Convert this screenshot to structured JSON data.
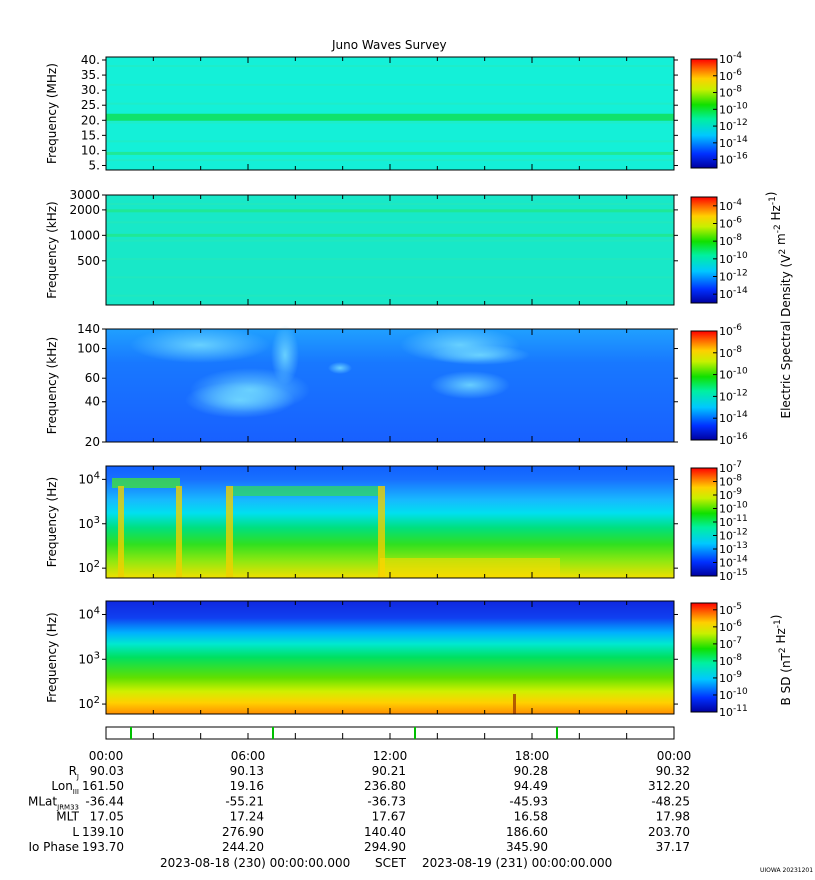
{
  "title": "Juno Waves Survey",
  "chart_data": [
    {
      "type": "heatmap",
      "ylabel": "Frequency (MHz)",
      "ylim": [
        3.5,
        41
      ],
      "yscale": "linear",
      "yticks": [
        5,
        10,
        15,
        20,
        25,
        30,
        35,
        40
      ],
      "yticklabels": [
        "5.",
        "10.",
        "15.",
        "20.",
        "25.",
        "30.",
        "35.",
        "40."
      ],
      "colorbar": {
        "ticks": [
          "10^-4",
          "10^-6",
          "10^-8",
          "10^-10",
          "10^-12",
          "10^-14",
          "10^-16"
        ],
        "range_exp": [
          -17,
          -4
        ]
      },
      "bands": [
        {
          "value": 21,
          "note": "emission line"
        },
        {
          "value": 9,
          "note": "faint line"
        }
      ]
    },
    {
      "type": "heatmap",
      "ylabel": "Frequency (kHz)",
      "ylim": [
        150,
        3000
      ],
      "yscale": "log",
      "yticks": [
        500,
        1000,
        2000,
        3000
      ],
      "yticklabels": [
        "500",
        "1000",
        "2000",
        "3000"
      ],
      "colorbar": {
        "ticks": [
          "10^-4",
          "10^-6",
          "10^-8",
          "10^-10",
          "10^-12",
          "10^-14"
        ],
        "range_exp": [
          -15,
          -3
        ]
      },
      "bands": [
        {
          "value": 1950
        },
        {
          "value": 1000
        }
      ]
    },
    {
      "type": "heatmap",
      "ylabel": "Frequency (kHz)",
      "ylim": [
        20,
        140
      ],
      "yscale": "log",
      "yticks": [
        20,
        40,
        60,
        100,
        140
      ],
      "yticklabels": [
        "20",
        "40",
        "60",
        "100",
        "140"
      ],
      "colorbar": {
        "ticks": [
          "10^-6",
          "10^-8",
          "10^-10",
          "10^-12",
          "10^-14",
          "10^-16"
        ],
        "range_exp": [
          -16,
          -6
        ]
      }
    },
    {
      "type": "heatmap",
      "ylabel": "Frequency (Hz)",
      "ylim": [
        60,
        20000
      ],
      "yscale": "log",
      "yticks": [
        100,
        1000,
        10000
      ],
      "yticklabels": [
        "10^2",
        "10^3",
        "10^4"
      ],
      "colorbar": {
        "ticks": [
          "10^-7",
          "10^-8",
          "10^-9",
          "10^-10",
          "10^-11",
          "10^-12",
          "10^-13",
          "10^-14",
          "10^-15"
        ],
        "range_exp": [
          -15,
          -7
        ]
      }
    },
    {
      "type": "heatmap",
      "ylabel": "Frequency (Hz)",
      "ylim": [
        60,
        20000
      ],
      "yscale": "log",
      "yticks": [
        100,
        1000,
        10000
      ],
      "yticklabels": [
        "10^2",
        "10^3",
        "10^4"
      ],
      "colorbar": {
        "ticks": [
          "10^-5",
          "10^-6",
          "10^-7",
          "10^-8",
          "10^-9",
          "10^-10",
          "10^-11"
        ],
        "range_exp": [
          -11,
          -4.6
        ]
      }
    }
  ],
  "colorbar_labels": {
    "electric": "Electric Spectral Density (V^2 m^-2 Hz^-1)",
    "magnetic": "B SD (nT^2 Hz^-1)"
  },
  "orbit_table": {
    "time_ticks": [
      "00:00",
      "06:00",
      "12:00",
      "18:00",
      "00:00"
    ],
    "rows": [
      {
        "label": "R",
        "sub": "J",
        "values": [
          "90.03",
          "90.13",
          "90.21",
          "90.28",
          "90.32"
        ]
      },
      {
        "label": "Lon",
        "sub": "III",
        "values": [
          "161.50",
          "19.16",
          "236.80",
          "94.49",
          "312.20"
        ]
      },
      {
        "label": "MLat",
        "sub": "JRM33",
        "values": [
          "-36.44",
          "-55.21",
          "-36.73",
          "-45.93",
          "-48.25"
        ]
      },
      {
        "label": "MLT",
        "sub": "",
        "values": [
          "17.05",
          "17.24",
          "17.67",
          "16.58",
          "17.98"
        ]
      },
      {
        "label": "L",
        "sub": "",
        "values": [
          "139.10",
          "276.90",
          "140.40",
          "186.60",
          "203.70"
        ]
      },
      {
        "label": "Io Phase",
        "sub": "",
        "values": [
          "193.70",
          "244.20",
          "294.90",
          "345.90",
          "37.17"
        ]
      }
    ]
  },
  "footer": {
    "start": "2023-08-18 (230) 00:00:00.000",
    "scet": "SCET",
    "end": "2023-08-19 (231) 00:00:00.000",
    "credit": "UIOWA 20231201"
  }
}
